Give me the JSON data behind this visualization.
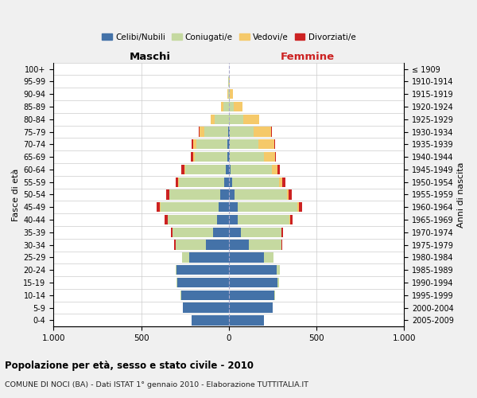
{
  "age_groups": [
    "0-4",
    "5-9",
    "10-14",
    "15-19",
    "20-24",
    "25-29",
    "30-34",
    "35-39",
    "40-44",
    "45-49",
    "50-54",
    "55-59",
    "60-64",
    "65-69",
    "70-74",
    "75-79",
    "80-84",
    "85-89",
    "90-94",
    "95-99",
    "100+"
  ],
  "birth_years": [
    "2005-2009",
    "2000-2004",
    "1995-1999",
    "1990-1994",
    "1985-1989",
    "1980-1984",
    "1975-1979",
    "1970-1974",
    "1965-1969",
    "1960-1964",
    "1955-1959",
    "1950-1954",
    "1945-1949",
    "1940-1944",
    "1935-1939",
    "1930-1934",
    "1925-1929",
    "1920-1924",
    "1915-1919",
    "1910-1914",
    "≤ 1909"
  ],
  "males": {
    "celibi": [
      210,
      260,
      270,
      295,
      300,
      225,
      130,
      90,
      65,
      60,
      50,
      25,
      15,
      10,
      10,
      5,
      0,
      0,
      0,
      0,
      0
    ],
    "coniugati": [
      0,
      0,
      5,
      5,
      5,
      40,
      175,
      230,
      285,
      330,
      290,
      260,
      235,
      185,
      175,
      135,
      80,
      30,
      5,
      2,
      0
    ],
    "vedovi": [
      0,
      0,
      0,
      0,
      0,
      0,
      0,
      0,
      0,
      5,
      0,
      5,
      5,
      10,
      20,
      25,
      25,
      15,
      5,
      2,
      0
    ],
    "divorziati": [
      0,
      0,
      0,
      0,
      0,
      0,
      5,
      10,
      15,
      15,
      15,
      15,
      15,
      10,
      5,
      5,
      0,
      0,
      0,
      0,
      0
    ]
  },
  "females": {
    "nubili": [
      200,
      250,
      260,
      280,
      275,
      200,
      115,
      70,
      50,
      50,
      35,
      20,
      10,
      5,
      5,
      5,
      0,
      0,
      0,
      0,
      0
    ],
    "coniugate": [
      0,
      0,
      5,
      5,
      15,
      55,
      185,
      230,
      295,
      340,
      295,
      265,
      235,
      195,
      165,
      135,
      85,
      30,
      5,
      2,
      0
    ],
    "vedove": [
      0,
      0,
      0,
      0,
      0,
      0,
      0,
      0,
      5,
      10,
      10,
      20,
      35,
      65,
      90,
      100,
      90,
      50,
      20,
      5,
      0
    ],
    "divorziate": [
      0,
      0,
      0,
      0,
      0,
      0,
      5,
      10,
      15,
      20,
      20,
      20,
      10,
      5,
      5,
      5,
      0,
      0,
      0,
      0,
      0
    ]
  },
  "color_celibi": "#4472a8",
  "color_coniugati": "#c5d9a0",
  "color_vedovi": "#f5c96a",
  "color_divorziati": "#cc2222",
  "xlim": 1000,
  "title_main": "Popolazione per età, sesso e stato civile - 2010",
  "title_sub": "COMUNE DI NOCI (BA) - Dati ISTAT 1° gennaio 2010 - Elaborazione TUTTITALIA.IT",
  "label_maschi": "Maschi",
  "label_femmine": "Femmine",
  "label_fascia": "Fasce di età",
  "label_anni": "Anni di nascita",
  "legend_labels": [
    "Celibi/Nubili",
    "Coniugati/e",
    "Vedovi/e",
    "Divorziati/e"
  ],
  "bg_color": "#f0f0f0",
  "plot_bg": "#ffffff"
}
